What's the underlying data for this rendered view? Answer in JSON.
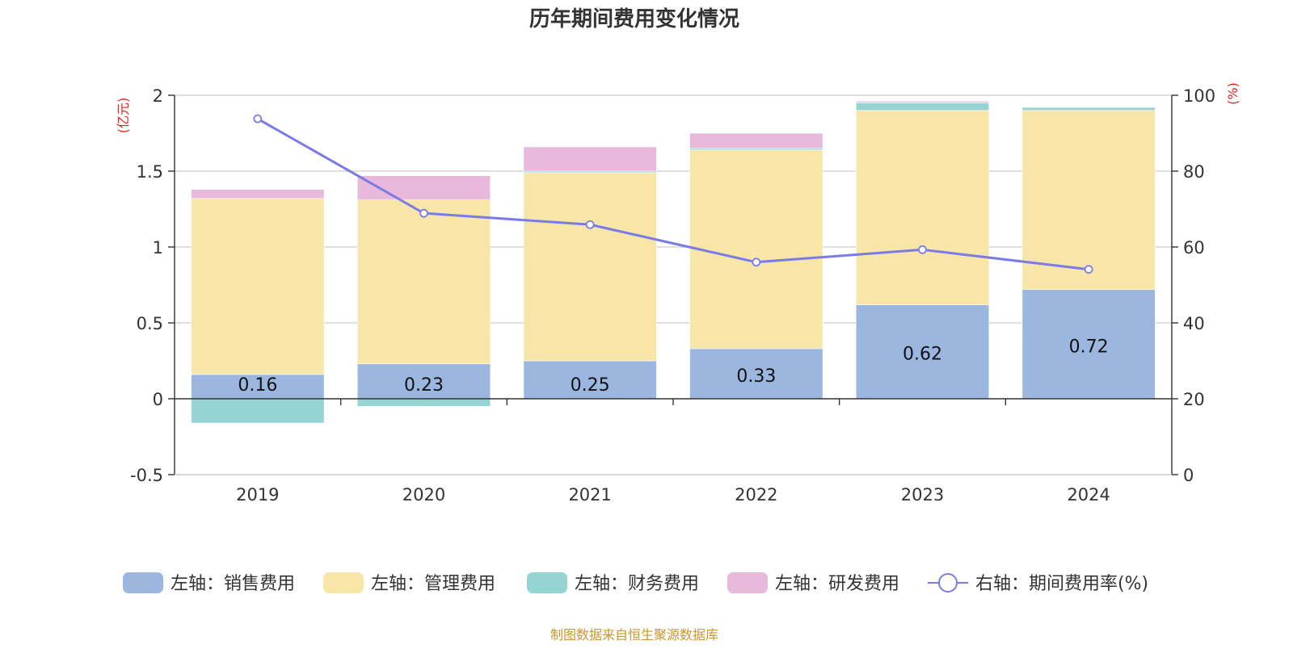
{
  "chart_data": {
    "type": "bar",
    "stacked": true,
    "title": "历年期间费用变化情况",
    "categories": [
      "2019",
      "2020",
      "2021",
      "2022",
      "2023",
      "2024"
    ],
    "y_left": {
      "label": "(亿元)",
      "min": -0.5,
      "max": 2,
      "ticks": [
        -0.5,
        0,
        0.5,
        1,
        1.5,
        2
      ],
      "tick_labels": [
        "-0.5",
        "0",
        "0.5",
        "1",
        "1.5",
        "2"
      ]
    },
    "y_right": {
      "label": "(%)",
      "min": 0,
      "max": 100,
      "ticks": [
        0,
        20,
        40,
        60,
        80,
        100
      ],
      "tick_labels": [
        "0",
        "20",
        "40",
        "60",
        "80",
        "100"
      ]
    },
    "series": [
      {
        "name": "左轴：销售费用",
        "axis": "left",
        "color": "#9bb7e0",
        "values": [
          0.16,
          0.23,
          0.25,
          0.33,
          0.62,
          0.72
        ],
        "data_labels": [
          "0.16",
          "0.23",
          "0.25",
          "0.33",
          "0.62",
          "0.72"
        ]
      },
      {
        "name": "左轴：管理费用",
        "axis": "left",
        "color": "#f8e6a8",
        "values": [
          1.16,
          1.08,
          1.24,
          1.31,
          1.28,
          1.18
        ]
      },
      {
        "name": "左轴：财务费用",
        "axis": "left",
        "color": "#96d4d4",
        "values": [
          -0.16,
          -0.05,
          0.01,
          0.01,
          0.05,
          0.02
        ]
      },
      {
        "name": "左轴：研发费用",
        "axis": "left",
        "color": "#e8b9da",
        "values": [
          0.06,
          0.16,
          0.16,
          0.1,
          0.01,
          0
        ]
      },
      {
        "name": "右轴：期间费用率(%)",
        "axis": "right",
        "type": "line",
        "color": "#7b7be8",
        "values": [
          93.8,
          68.9,
          65.9,
          56.0,
          59.3,
          54.1
        ]
      }
    ],
    "legend_position": "bottom",
    "grid": true,
    "source_note": "制图数据来自恒生聚源数据库",
    "colors": {
      "title": "#333333",
      "axis_label": "#e8231e",
      "tick": "#333333",
      "grid": "#cccccc",
      "source": "#c8962c"
    }
  }
}
